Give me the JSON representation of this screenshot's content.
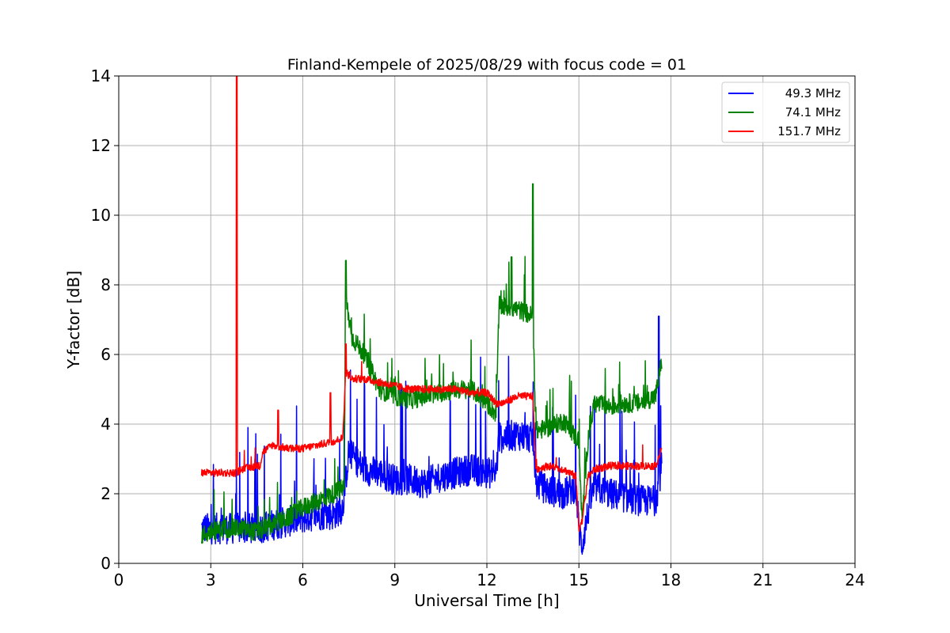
{
  "chart_data": {
    "type": "line",
    "title": "Finland-Kempele of 2025/08/29 with focus code = 01",
    "xlabel": "Universal Time [h]",
    "ylabel": "Y-factor [dB]",
    "xlim": [
      0,
      24
    ],
    "ylim": [
      0,
      14
    ],
    "xticks": [
      0,
      3,
      6,
      9,
      12,
      15,
      18,
      21,
      24
    ],
    "yticks": [
      0,
      2,
      4,
      6,
      8,
      10,
      12,
      14
    ],
    "grid": true,
    "legend_position": "top-right",
    "series": [
      {
        "name": "49.3 MHz",
        "color": "#0000ff",
        "x": [
          2.7,
          3.0,
          3.5,
          4.0,
          4.5,
          5.0,
          5.5,
          6.0,
          6.5,
          7.0,
          7.3,
          7.5,
          8.0,
          8.5,
          9.0,
          9.5,
          10.0,
          10.5,
          11.0,
          11.5,
          12.0,
          12.3,
          12.4,
          13.0,
          13.5,
          13.6,
          14.0,
          14.5,
          14.9,
          15.0,
          15.1,
          15.3,
          15.5,
          16.0,
          16.5,
          17.0,
          17.5,
          17.7
        ],
        "y": [
          1.0,
          1.0,
          1.0,
          1.0,
          1.0,
          1.1,
          1.2,
          1.3,
          1.4,
          1.4,
          1.6,
          3.2,
          2.7,
          2.6,
          2.4,
          2.4,
          2.3,
          2.5,
          2.6,
          2.7,
          2.6,
          2.6,
          3.6,
          3.7,
          3.6,
          2.3,
          2.1,
          2.0,
          2.2,
          1.0,
          0.5,
          1.5,
          2.2,
          2.0,
          1.9,
          1.8,
          1.8,
          2.8
        ],
        "notable_peaks": [
          {
            "x": 17.6,
            "y": 7.1
          }
        ]
      },
      {
        "name": "74.1 MHz",
        "color": "#008000",
        "x": [
          2.7,
          3.0,
          3.5,
          4.0,
          4.5,
          5.0,
          5.5,
          6.0,
          6.5,
          7.0,
          7.35,
          7.4,
          7.6,
          8.0,
          8.5,
          9.0,
          9.5,
          10.0,
          10.5,
          11.0,
          11.5,
          12.0,
          12.3,
          12.4,
          13.0,
          13.5,
          13.6,
          14.0,
          14.5,
          15.0,
          15.1,
          15.3,
          15.5,
          16.0,
          16.5,
          17.0,
          17.5,
          17.7
        ],
        "y": [
          0.8,
          0.9,
          1.0,
          1.0,
          0.9,
          1.1,
          1.3,
          1.6,
          1.8,
          2.0,
          2.2,
          7.6,
          6.5,
          6.0,
          5.0,
          4.8,
          4.7,
          4.8,
          4.9,
          5.0,
          5.0,
          4.6,
          4.3,
          7.4,
          7.3,
          7.1,
          3.8,
          3.9,
          4.1,
          3.5,
          1.2,
          3.6,
          4.6,
          4.5,
          4.6,
          4.6,
          4.8,
          5.8
        ],
        "notable_peaks": [
          {
            "x": 7.4,
            "y": 8.7
          },
          {
            "x": 12.8,
            "y": 8.8
          },
          {
            "x": 13.5,
            "y": 10.9
          }
        ]
      },
      {
        "name": "151.7 MHz",
        "color": "#ff0000",
        "x": [
          2.7,
          3.0,
          3.5,
          3.85,
          4.0,
          4.5,
          4.6,
          4.7,
          5.0,
          5.5,
          6.0,
          6.5,
          7.0,
          7.3,
          7.4,
          7.6,
          8.0,
          8.5,
          9.0,
          9.5,
          10.0,
          10.5,
          11.0,
          11.5,
          12.0,
          12.3,
          12.5,
          13.0,
          13.5,
          13.6,
          14.0,
          14.5,
          14.9,
          15.0,
          15.1,
          15.3,
          15.5,
          16.0,
          16.5,
          17.0,
          17.5,
          17.7
        ],
        "y": [
          2.6,
          2.6,
          2.6,
          2.6,
          2.7,
          2.8,
          2.8,
          3.2,
          3.4,
          3.3,
          3.3,
          3.4,
          3.5,
          3.6,
          5.5,
          5.3,
          5.3,
          5.2,
          5.1,
          5.0,
          5.0,
          5.0,
          5.0,
          4.9,
          4.9,
          4.6,
          4.6,
          4.8,
          4.8,
          2.7,
          2.8,
          2.7,
          2.5,
          1.0,
          1.2,
          2.5,
          2.7,
          2.8,
          2.8,
          2.8,
          2.8,
          3.3
        ],
        "notable_peaks": [
          {
            "x": 3.85,
            "y": 14.0
          },
          {
            "x": 5.2,
            "y": 4.4
          },
          {
            "x": 6.9,
            "y": 4.9
          },
          {
            "x": 7.4,
            "y": 6.3
          }
        ]
      }
    ]
  }
}
